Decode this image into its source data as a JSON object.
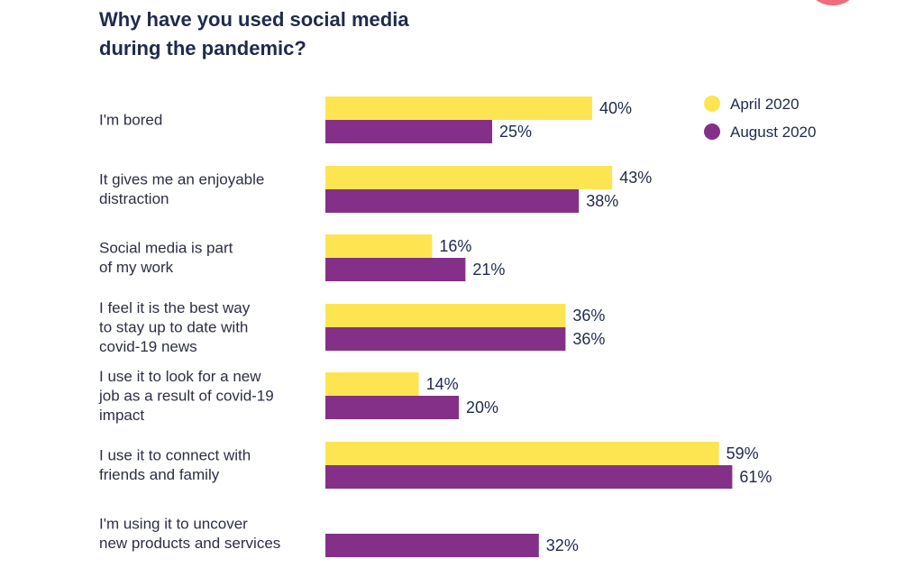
{
  "chart_data": {
    "type": "bar",
    "orientation": "horizontal",
    "title": "Why have you used social media\nduring the pandemic?",
    "xlabel": "",
    "ylabel": "",
    "value_suffix": "%",
    "xlim": [
      0,
      65
    ],
    "grid": false,
    "legend_position": "top-right",
    "categories": [
      "I'm bored",
      "It gives me an enjoyable\ndistraction",
      "Social media is part\nof my work",
      "I feel it is the best way\nto stay up to date with\ncovid-19 news",
      "I use it to look for a new\njob as a result of covid-19\nimpact",
      "I use it to connect with\nfriends and family",
      "I'm using it to uncover\nnew products and services"
    ],
    "series": [
      {
        "name": "April 2020",
        "color": "#fde552",
        "values": [
          40,
          43,
          16,
          36,
          14,
          59,
          null
        ]
      },
      {
        "name": "August 2020",
        "color": "#843088",
        "values": [
          25,
          38,
          21,
          36,
          20,
          61,
          32
        ]
      }
    ]
  },
  "decoration": {
    "corner_circle_color": "#f06b7d"
  }
}
